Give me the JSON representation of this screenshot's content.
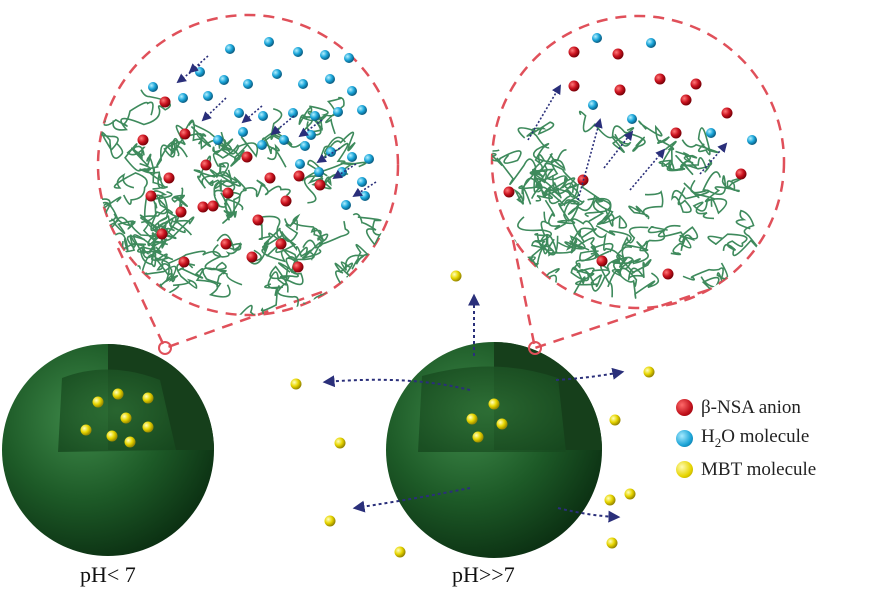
{
  "captions": {
    "left": "pH< 7",
    "right": "pH>>7"
  },
  "legend": {
    "items": [
      {
        "label": "β-NSA anion",
        "color": "#c8141e",
        "icon": "red-sphere"
      },
      {
        "label_prefix": "H",
        "label_sub": "2",
        "label_suffix": "O molecule",
        "color": "#1ea7dc",
        "icon": "blue-sphere"
      },
      {
        "label": "MBT molecule",
        "color": "#e3d400",
        "icon": "yellow-sphere"
      }
    ]
  },
  "colors": {
    "sphere": "#1f5a2a",
    "polymer": "#3e8a5c",
    "zoom_outline": "#e0505a",
    "arrow": "#2a2f7a"
  }
}
